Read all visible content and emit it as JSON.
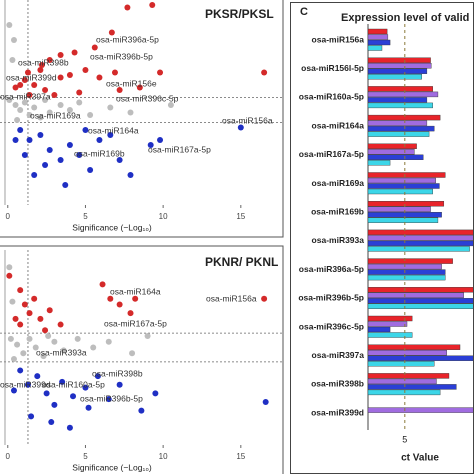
{
  "chart_data": [
    {
      "type": "scatter",
      "title": "PKSR/PKSL",
      "xlabel": "Significance (−Log₁₀)",
      "xlim": [
        -0.5,
        17.2
      ],
      "xticks": [
        0,
        5,
        10,
        15
      ],
      "ylim": [
        -3.8,
        4.4
      ],
      "hlines": [
        0.5,
        -0.5
      ],
      "vlines": [
        1.3
      ],
      "annotations": [
        "osa-miR396a-5p",
        "osa-miR396b-5p",
        "osa-miR398b",
        "osa-miR156e",
        "osa-miR399d",
        "osa-miR397a",
        "osa-miR396c-5p",
        "osa-miR169a",
        "osa-miR164a",
        "osa-miR156a",
        "osa-miR167a-5p",
        "osa-miR169b"
      ],
      "series": [
        {
          "color": "#d42a2a",
          "x": [
            7.7,
            9.3,
            6.7,
            5.6,
            4.3,
            3.4,
            2.7,
            2.2,
            2.1,
            1.3,
            1.1,
            0.8,
            1.7,
            0.5,
            2.4,
            3.4,
            4.0,
            5.0,
            5.9,
            6.9,
            7.2,
            8.5,
            9.8,
            16.5,
            1.4,
            3.0,
            4.6
          ],
          "values": [
            4.1,
            4.2,
            3.1,
            2.5,
            2.3,
            2.2,
            2.0,
            1.8,
            1.6,
            1.5,
            1.2,
            1.0,
            1.0,
            0.9,
            0.8,
            1.3,
            1.4,
            1.6,
            1.3,
            1.5,
            0.8,
            0.9,
            1.5,
            1.5,
            0.6,
            0.6,
            0.7
          ]
        },
        {
          "color": "#bdbdbd",
          "x": [
            0.1,
            0.5,
            0.8,
            1.1,
            1.4,
            1.7,
            2.1,
            2.7,
            3.4,
            4.0,
            4.6,
            5.3,
            6.6,
            7.9,
            10.5,
            0.3,
            0.4,
            0.1,
            0.6,
            2.4
          ],
          "values": [
            0.4,
            0.2,
            0.0,
            0.3,
            -0.2,
            0.1,
            -0.3,
            -0.1,
            0.2,
            0.0,
            0.3,
            -0.2,
            0.1,
            -0.1,
            0.2,
            2.0,
            2.8,
            3.4,
            -0.4,
            0.4
          ]
        },
        {
          "color": "#1f2fc4",
          "x": [
            0.8,
            1.4,
            2.1,
            2.7,
            3.4,
            4.0,
            4.6,
            5.3,
            5.9,
            6.6,
            7.2,
            7.9,
            2.4,
            1.1,
            1.7,
            9.2,
            9.8,
            15.0,
            3.7,
            0.5,
            5.0
          ],
          "values": [
            -0.8,
            -1.2,
            -1.0,
            -1.6,
            -2.0,
            -1.4,
            -1.8,
            -2.4,
            -1.2,
            -1.0,
            -2.0,
            -2.6,
            -2.2,
            -1.8,
            -2.6,
            -1.4,
            -1.2,
            -0.7,
            -3.0,
            -1.2,
            -0.8
          ]
        }
      ]
    },
    {
      "type": "scatter",
      "title": "PKNR/ PKNL",
      "xlabel": "Significance (−Log₁₀)",
      "xlim": [
        -0.5,
        17.2
      ],
      "xticks": [
        0,
        5,
        10,
        15
      ],
      "ylim": [
        -3.4,
        3.4
      ],
      "hlines": [
        0.5,
        -0.5
      ],
      "vlines": [
        1.3
      ],
      "annotations": [
        "osa-miR164a",
        "osa-miR156a",
        "osa-miR167a-5p",
        "osa-miR393a",
        "osa-miR398b",
        "osa-miR160a-5p",
        "osa-miR399d",
        "osa-miR396b-5p"
      ],
      "series": [
        {
          "color": "#d42a2a",
          "x": [
            6.1,
            6.6,
            7.2,
            8.2,
            7.9,
            16.5,
            0.8,
            1.1,
            1.4,
            2.1,
            0.5,
            2.7,
            1.7,
            0.8,
            3.4,
            0.1,
            2.4
          ],
          "values": [
            2.2,
            1.7,
            1.5,
            1.7,
            1.2,
            1.7,
            2.0,
            1.5,
            1.2,
            1.0,
            1.0,
            1.3,
            1.7,
            0.8,
            0.8,
            2.5,
            0.6
          ]
        },
        {
          "color": "#bdbdbd",
          "x": [
            0.2,
            0.6,
            1.0,
            1.4,
            1.8,
            2.3,
            3.0,
            3.6,
            4.5,
            5.5,
            6.5,
            8.0,
            9.0,
            0.3,
            0.1,
            0.4,
            2.6
          ],
          "values": [
            0.3,
            0.1,
            -0.2,
            0.3,
            0.0,
            -0.3,
            0.2,
            -0.1,
            0.3,
            0.0,
            0.2,
            -0.2,
            0.4,
            1.6,
            2.8,
            -0.4,
            0.4
          ]
        },
        {
          "color": "#1f2fc4",
          "x": [
            0.8,
            1.3,
            1.9,
            2.5,
            3.0,
            3.5,
            4.2,
            5.0,
            5.2,
            5.8,
            6.5,
            7.2,
            8.6,
            1.5,
            2.8,
            4.0,
            0.4,
            16.6,
            9.5
          ],
          "values": [
            -0.8,
            -1.3,
            -1.0,
            -1.6,
            -2.0,
            -1.2,
            -1.7,
            -1.4,
            -2.1,
            -1.0,
            -1.8,
            -1.3,
            -2.2,
            -2.4,
            -2.6,
            -2.8,
            -1.5,
            -1.9,
            -1.6
          ]
        }
      ]
    },
    {
      "type": "bar",
      "panel_label": "C",
      "title": "Expression level of valid",
      "xlabel": "ct Value",
      "xlim": [
        0,
        14.4
      ],
      "xticks": [
        5
      ],
      "categories": [
        "osa-miR156a",
        "osa-miR156l-5p",
        "osa-miR160a-5p",
        "osa-miR164a",
        "osa-miR167a-5p",
        "osa-miR169a",
        "osa-miR169b",
        "osa-miR393a",
        "osa-miR396a-5p",
        "osa-miR396b-5p",
        "osa-miR396c-5p",
        "osa-miR397a",
        "osa-miR398b",
        "osa-miR399d"
      ],
      "series": [
        {
          "color": "#e8242a",
          "values": [
            2.6,
            8.5,
            8.8,
            9.8,
            6.6,
            10.5,
            10.3,
            15,
            11.5,
            15,
            6.0,
            12.5,
            11.0,
            null
          ]
        },
        {
          "color": "#a06ce0",
          "values": [
            2.7,
            8.6,
            9.5,
            8.0,
            6.3,
            9.2,
            8.5,
            15,
            10.0,
            13.0,
            5.3,
            10.7,
            9.3,
            14.5
          ]
        },
        {
          "color": "#2b3fd6",
          "values": [
            3.0,
            8.0,
            8.0,
            9.0,
            7.5,
            9.7,
            10.0,
            15,
            10.5,
            15,
            3.0,
            15,
            12.0,
            null
          ]
        },
        {
          "color": "#3cd6e8",
          "values": [
            1.9,
            7.3,
            8.8,
            8.3,
            3.0,
            8.8,
            9.5,
            13.8,
            10.5,
            15,
            6.0,
            9.0,
            9.8,
            null
          ]
        }
      ]
    }
  ]
}
